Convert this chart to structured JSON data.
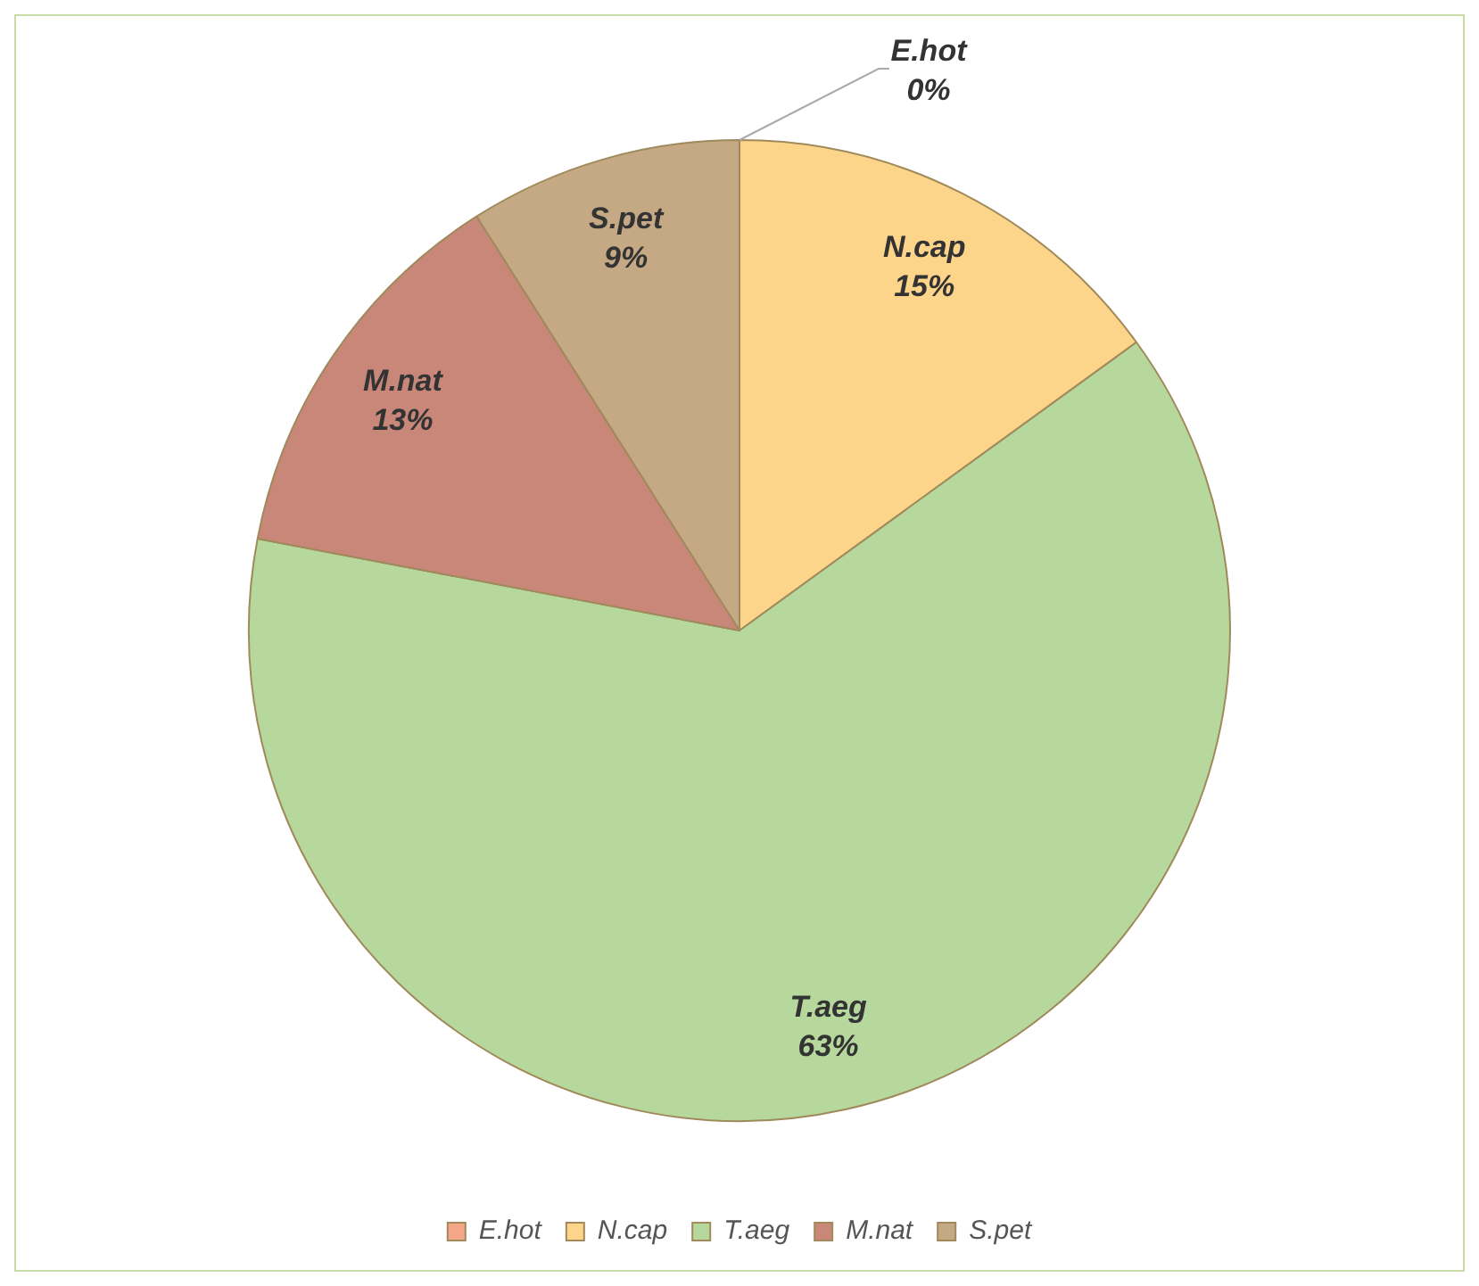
{
  "chart_data": {
    "type": "pie",
    "categories": [
      "E.hot",
      "N.cap",
      "T.aeg",
      "M.nat",
      "S.pet"
    ],
    "values": [
      0,
      15,
      63,
      13,
      9
    ],
    "colors": [
      "#f4a688",
      "#fdd58a",
      "#b6d89c",
      "#c9877a",
      "#c4a984"
    ],
    "value_labels": [
      "0%",
      "15%",
      "63%",
      "13%",
      "9%"
    ],
    "legend": "bottom"
  }
}
